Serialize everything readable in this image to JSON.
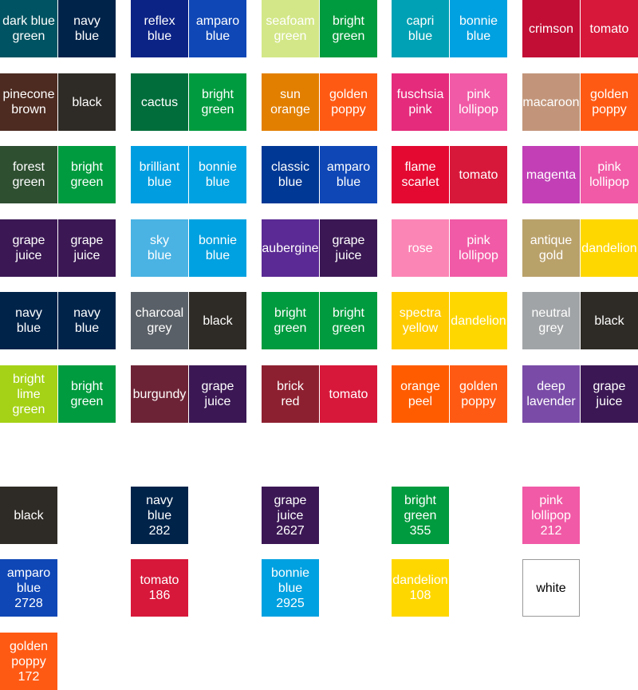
{
  "pairs": [
    {
      "left": {
        "label": "dark blue\ngreen",
        "color": "#005362"
      },
      "right": {
        "label": "navy\nblue",
        "color": "#00234a"
      }
    },
    {
      "left": {
        "label": "reflex\nblue",
        "color": "#0c2386"
      },
      "right": {
        "label": "amparo\nblue",
        "color": "#0f47b6"
      }
    },
    {
      "left": {
        "label": "seafoam\ngreen",
        "color": "#d3e788"
      },
      "right": {
        "label": "bright\ngreen",
        "color": "#009b3e"
      }
    },
    {
      "left": {
        "label": "capri\nblue",
        "color": "#00a1b4"
      },
      "right": {
        "label": "bonnie\nblue",
        "color": "#00a1e0"
      }
    },
    {
      "left": {
        "label": "crimson",
        "color": "#c20e35"
      },
      "right": {
        "label": "tomato",
        "color": "#d7183a"
      }
    },
    {
      "left": {
        "label": "pinecone\nbrown",
        "color": "#4d2b21"
      },
      "right": {
        "label": "black",
        "color": "#2e2a25"
      }
    },
    {
      "left": {
        "label": "cactus",
        "color": "#006d3b"
      },
      "right": {
        "label": "bright\ngreen",
        "color": "#009b3e"
      }
    },
    {
      "left": {
        "label": "sun\norange",
        "color": "#e27f00"
      },
      "right": {
        "label": "golden\npoppy",
        "color": "#ff5a14"
      }
    },
    {
      "left": {
        "label": "fuschsia\npink",
        "color": "#e52b7c"
      },
      "right": {
        "label": "pink\nlollipop",
        "color": "#f15aa6"
      }
    },
    {
      "left": {
        "label": "macaroon",
        "color": "#c2957a"
      },
      "right": {
        "label": "golden\npoppy",
        "color": "#ff5a14"
      }
    },
    {
      "left": {
        "label": "forest\ngreen",
        "color": "#2f4f31"
      },
      "right": {
        "label": "bright\ngreen",
        "color": "#009b3e"
      }
    },
    {
      "left": {
        "label": "brilliant\nblue",
        "color": "#009ee0"
      },
      "right": {
        "label": "bonnie\nblue",
        "color": "#00a1e0"
      }
    },
    {
      "left": {
        "label": "classic\nblue",
        "color": "#003895"
      },
      "right": {
        "label": "amparo\nblue",
        "color": "#0f47b6"
      }
    },
    {
      "left": {
        "label": "flame\nscarlet",
        "color": "#e40931"
      },
      "right": {
        "label": "tomato",
        "color": "#d7183a"
      }
    },
    {
      "left": {
        "label": "magenta",
        "color": "#c23fb6"
      },
      "right": {
        "label": "pink\nlollipop",
        "color": "#f15aa6"
      }
    },
    {
      "left": {
        "label": "grape\njuice",
        "color": "#3b1854"
      },
      "right": {
        "label": "grape\njuice",
        "color": "#3b1854"
      }
    },
    {
      "left": {
        "label": "sky\nblue",
        "color": "#4ab3e4"
      },
      "right": {
        "label": "bonnie\nblue",
        "color": "#00a1e0"
      }
    },
    {
      "left": {
        "label": "aubergine",
        "color": "#5b2a94"
      },
      "right": {
        "label": "grape\njuice",
        "color": "#3b1854"
      }
    },
    {
      "left": {
        "label": "rose",
        "color": "#fb85b5"
      },
      "right": {
        "label": "pink\nlollipop",
        "color": "#f15aa6"
      }
    },
    {
      "left": {
        "label": "antique\ngold",
        "color": "#b9a16a"
      },
      "right": {
        "label": "dandelion",
        "color": "#ffd700"
      }
    },
    {
      "left": {
        "label": "navy\nblue",
        "color": "#00234a"
      },
      "right": {
        "label": "navy\nblue",
        "color": "#00234a"
      }
    },
    {
      "left": {
        "label": "charcoal\ngrey",
        "color": "#5a6067"
      },
      "right": {
        "label": "black",
        "color": "#2e2a25"
      }
    },
    {
      "left": {
        "label": "bright\ngreen",
        "color": "#009b3e"
      },
      "right": {
        "label": "bright\ngreen",
        "color": "#009b3e"
      }
    },
    {
      "left": {
        "label": "spectra\nyellow",
        "color": "#ffcc00"
      },
      "right": {
        "label": "dandelion",
        "color": "#ffd700"
      }
    },
    {
      "left": {
        "label": "neutral\ngrey",
        "color": "#a1a4a6"
      },
      "right": {
        "label": "black",
        "color": "#2e2a25"
      }
    },
    {
      "left": {
        "label": "bright\nlime\ngreen",
        "color": "#a5d216"
      },
      "right": {
        "label": "bright\ngreen",
        "color": "#009b3e"
      }
    },
    {
      "left": {
        "label": "burgundy",
        "color": "#6d2336"
      },
      "right": {
        "label": "grape\njuice",
        "color": "#3b1854"
      }
    },
    {
      "left": {
        "label": "brick\nred",
        "color": "#8d2030"
      },
      "right": {
        "label": "tomato",
        "color": "#d7183a"
      }
    },
    {
      "left": {
        "label": "orange\npeel",
        "color": "#ff5c00"
      },
      "right": {
        "label": "golden\npoppy",
        "color": "#ff5a14"
      }
    },
    {
      "left": {
        "label": "deep\nlavender",
        "color": "#7a4ca7"
      },
      "right": {
        "label": "grape\njuice",
        "color": "#3b1854"
      }
    }
  ],
  "singles": [
    {
      "label": "black",
      "color": "#2e2a25"
    },
    {
      "label": "navy\nblue\n282",
      "color": "#00234a"
    },
    {
      "label": "grape\njuice\n2627",
      "color": "#3b1854"
    },
    {
      "label": "bright\ngreen\n355",
      "color": "#009b3e"
    },
    {
      "label": "pink\nlollipop\n212",
      "color": "#f15aa6"
    },
    {
      "label": "amparo\nblue\n2728",
      "color": "#0f47b6"
    },
    {
      "label": "tomato\n186",
      "color": "#d7183a"
    },
    {
      "label": "bonnie\nblue\n2925",
      "color": "#00a1e0"
    },
    {
      "label": "dandelion\n108",
      "color": "#ffd700"
    },
    {
      "label": "white",
      "color": "#ffffff"
    },
    {
      "label": "golden\npoppy\n172",
      "color": "#ff5a14"
    }
  ]
}
